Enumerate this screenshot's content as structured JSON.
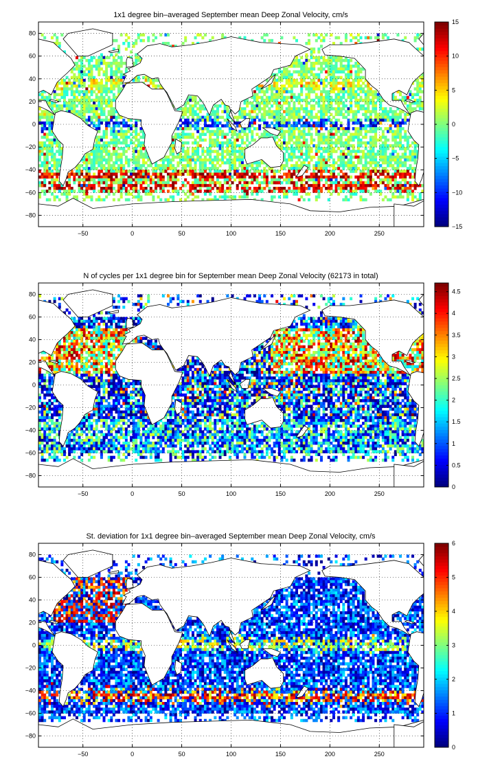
{
  "figure": {
    "panels": [
      {
        "title": "1x1 degree bin–averaged September mean Deep Zonal Velocity, cm/s",
        "colorbar_ticks": [
          "15",
          "10",
          "5",
          "0",
          "−5",
          "−10",
          "−15"
        ]
      },
      {
        "title": "N of cycles per 1x1 degree bin for September mean Deep Zonal Velocity (62173 in total)",
        "colorbar_ticks": [
          "4.5",
          "4",
          "3.5",
          "3",
          "2.5",
          "2",
          "1.5",
          "1",
          "0.5",
          "0"
        ]
      },
      {
        "title": "St. deviation for 1x1 degree bin–averaged September mean Deep Zonal Velocity, cm/s",
        "colorbar_ticks": [
          "6",
          "5",
          "4",
          "3",
          "2",
          "1",
          "0"
        ]
      }
    ],
    "x_tick_labels": [
      "−50",
      "0",
      "50",
      "100",
      "150",
      "200",
      "250"
    ],
    "y_tick_labels": [
      "80",
      "60",
      "40",
      "20",
      "0",
      "−20",
      "−40",
      "−60",
      "−80"
    ]
  },
  "chart_data": [
    {
      "type": "heatmap",
      "title": "1x1 degree bin–averaged September mean Deep Zonal Velocity, cm/s",
      "x_range": [
        -95,
        295
      ],
      "y_range": [
        -90,
        90
      ],
      "x_ticks": [
        -50,
        0,
        50,
        100,
        150,
        200,
        250
      ],
      "y_ticks": [
        80,
        60,
        40,
        20,
        0,
        -20,
        -40,
        -60,
        -80
      ],
      "grid": true,
      "colorbar": {
        "colormap": "jet",
        "range": [
          -15,
          15
        ],
        "ticks": [
          15,
          10,
          5,
          0,
          -5,
          -10,
          -15
        ],
        "position": "right"
      },
      "bands": [
        {
          "lat": 0,
          "value": -10
        },
        {
          "lat": -45,
          "value": 12
        },
        {
          "lat": -55,
          "value": 12
        },
        {
          "lat": 35,
          "value": 3
        }
      ]
    },
    {
      "type": "heatmap",
      "title": "N of cycles per 1x1 degree bin for September mean Deep Zonal Velocity (62173 in total)",
      "total_cycles": 62173,
      "x_range": [
        -95,
        295
      ],
      "y_range": [
        -90,
        90
      ],
      "x_ticks": [
        -50,
        0,
        50,
        100,
        150,
        200,
        250
      ],
      "y_ticks": [
        80,
        60,
        40,
        20,
        0,
        -20,
        -40,
        -60,
        -80
      ],
      "grid": true,
      "colorbar": {
        "colormap": "jet",
        "range": [
          0,
          4.7
        ],
        "ticks": [
          4.5,
          4,
          3.5,
          3,
          2.5,
          2,
          1.5,
          1,
          0.5,
          0
        ],
        "position": "right"
      }
    },
    {
      "type": "heatmap",
      "title": "St. deviation for 1x1 degree bin–averaged September mean Deep Zonal Velocity, cm/s",
      "x_range": [
        -95,
        295
      ],
      "y_range": [
        -90,
        90
      ],
      "x_ticks": [
        -50,
        0,
        50,
        100,
        150,
        200,
        250
      ],
      "y_ticks": [
        80,
        60,
        40,
        20,
        0,
        -20,
        -40,
        -60,
        -80
      ],
      "grid": true,
      "colorbar": {
        "colormap": "jet",
        "range": [
          0,
          6
        ],
        "ticks": [
          6,
          5,
          4,
          3,
          2,
          1,
          0
        ],
        "position": "right"
      },
      "bands": [
        {
          "lat": -45,
          "value": 5.5
        },
        {
          "lat": 0,
          "value": 4
        }
      ]
    }
  ]
}
